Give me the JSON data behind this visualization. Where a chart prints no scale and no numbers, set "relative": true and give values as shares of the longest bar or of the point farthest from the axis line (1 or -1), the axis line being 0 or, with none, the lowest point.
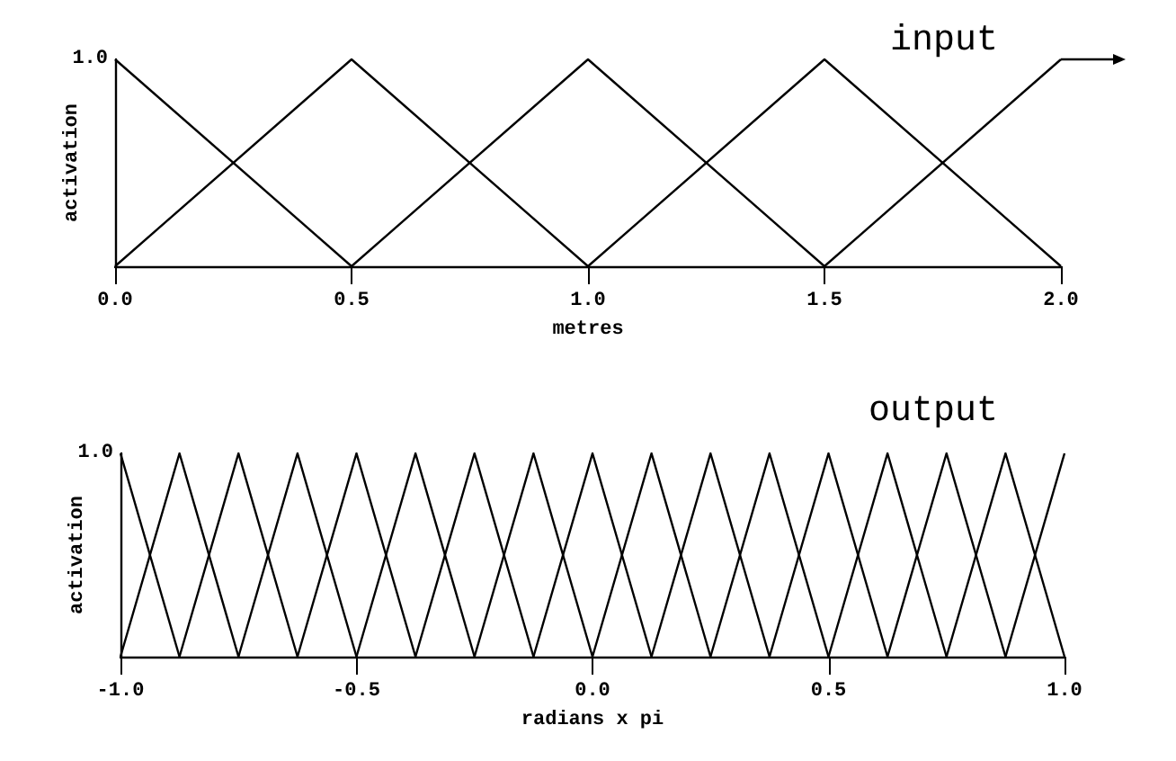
{
  "chart_data": [
    {
      "type": "line",
      "title": "input",
      "xlabel": "metres",
      "ylabel": "activation",
      "relative": true,
      "annotations": [
        "1.0"
      ],
      "xlim": [
        0,
        2
      ],
      "xticks": [
        {
          "value": 0,
          "label": "0.0"
        },
        {
          "value": 0.5,
          "label": "0.5"
        },
        {
          "value": 1,
          "label": "1.0"
        },
        {
          "value": 1.5,
          "label": "1.5"
        },
        {
          "value": 2,
          "label": "2.0"
        }
      ],
      "marker": "none",
      "line_style": "solid",
      "series": [
        {
          "color": "#000000",
          "x": [
            0,
            0.5
          ],
          "values": [
            1,
            0
          ]
        },
        {
          "color": "#000000",
          "x": [
            0,
            0.5,
            1
          ],
          "values": [
            0,
            1,
            0
          ]
        },
        {
          "color": "#000000",
          "x": [
            0.5,
            1,
            1.5
          ],
          "values": [
            0,
            1,
            0
          ]
        },
        {
          "color": "#000000",
          "x": [
            1,
            1.5,
            2
          ],
          "values": [
            0,
            1,
            0
          ]
        },
        {
          "color": "#000000",
          "x": [
            1.5,
            2
          ],
          "values": [
            0,
            1
          ]
        }
      ]
    },
    {
      "type": "line",
      "title": "output",
      "xlabel": "radians x pi",
      "ylabel": "activation",
      "relative": true,
      "annotations": [
        "1.0"
      ],
      "xlim": [
        -1,
        1
      ],
      "xticks": [
        {
          "value": -1,
          "label": "-1.0"
        },
        {
          "value": -0.5,
          "label": "-0.5"
        },
        {
          "value": 0,
          "label": "0.0"
        },
        {
          "value": 0.5,
          "label": "0.5"
        },
        {
          "value": 1,
          "label": "1.0"
        }
      ],
      "marker": "none",
      "line_style": "solid",
      "series": [
        {
          "color": "#000000",
          "x": [
            -1,
            -0.875
          ],
          "values": [
            1,
            0
          ]
        },
        {
          "color": "#000000",
          "x": [
            -1,
            -0.875,
            -0.75
          ],
          "values": [
            0,
            1,
            0
          ]
        },
        {
          "color": "#000000",
          "x": [
            -0.875,
            -0.75,
            -0.625
          ],
          "values": [
            0,
            1,
            0
          ]
        },
        {
          "color": "#000000",
          "x": [
            -0.75,
            -0.625,
            -0.5
          ],
          "values": [
            0,
            1,
            0
          ]
        },
        {
          "color": "#000000",
          "x": [
            -0.625,
            -0.5,
            -0.375
          ],
          "values": [
            0,
            1,
            0
          ]
        },
        {
          "color": "#000000",
          "x": [
            -0.5,
            -0.375,
            -0.25
          ],
          "values": [
            0,
            1,
            0
          ]
        },
        {
          "color": "#000000",
          "x": [
            -0.375,
            -0.25,
            -0.125
          ],
          "values": [
            0,
            1,
            0
          ]
        },
        {
          "color": "#000000",
          "x": [
            -0.25,
            -0.125,
            0
          ],
          "values": [
            0,
            1,
            0
          ]
        },
        {
          "color": "#000000",
          "x": [
            -0.125,
            0,
            0.125
          ],
          "values": [
            0,
            1,
            0
          ]
        },
        {
          "color": "#000000",
          "x": [
            0,
            0.125,
            0.25
          ],
          "values": [
            0,
            1,
            0
          ]
        },
        {
          "color": "#000000",
          "x": [
            0.125,
            0.25,
            0.375
          ],
          "values": [
            0,
            1,
            0
          ]
        },
        {
          "color": "#000000",
          "x": [
            0.25,
            0.375,
            0.5
          ],
          "values": [
            0,
            1,
            0
          ]
        },
        {
          "color": "#000000",
          "x": [
            0.375,
            0.5,
            0.625
          ],
          "values": [
            0,
            1,
            0
          ]
        },
        {
          "color": "#000000",
          "x": [
            0.5,
            0.625,
            0.75
          ],
          "values": [
            0,
            1,
            0
          ]
        },
        {
          "color": "#000000",
          "x": [
            0.625,
            0.75,
            0.875
          ],
          "values": [
            0,
            1,
            0
          ]
        },
        {
          "color": "#000000",
          "x": [
            0.75,
            0.875,
            1
          ],
          "values": [
            0,
            1,
            0
          ]
        },
        {
          "color": "#000000",
          "x": [
            0.875,
            1
          ],
          "values": [
            0,
            1
          ]
        }
      ]
    }
  ]
}
